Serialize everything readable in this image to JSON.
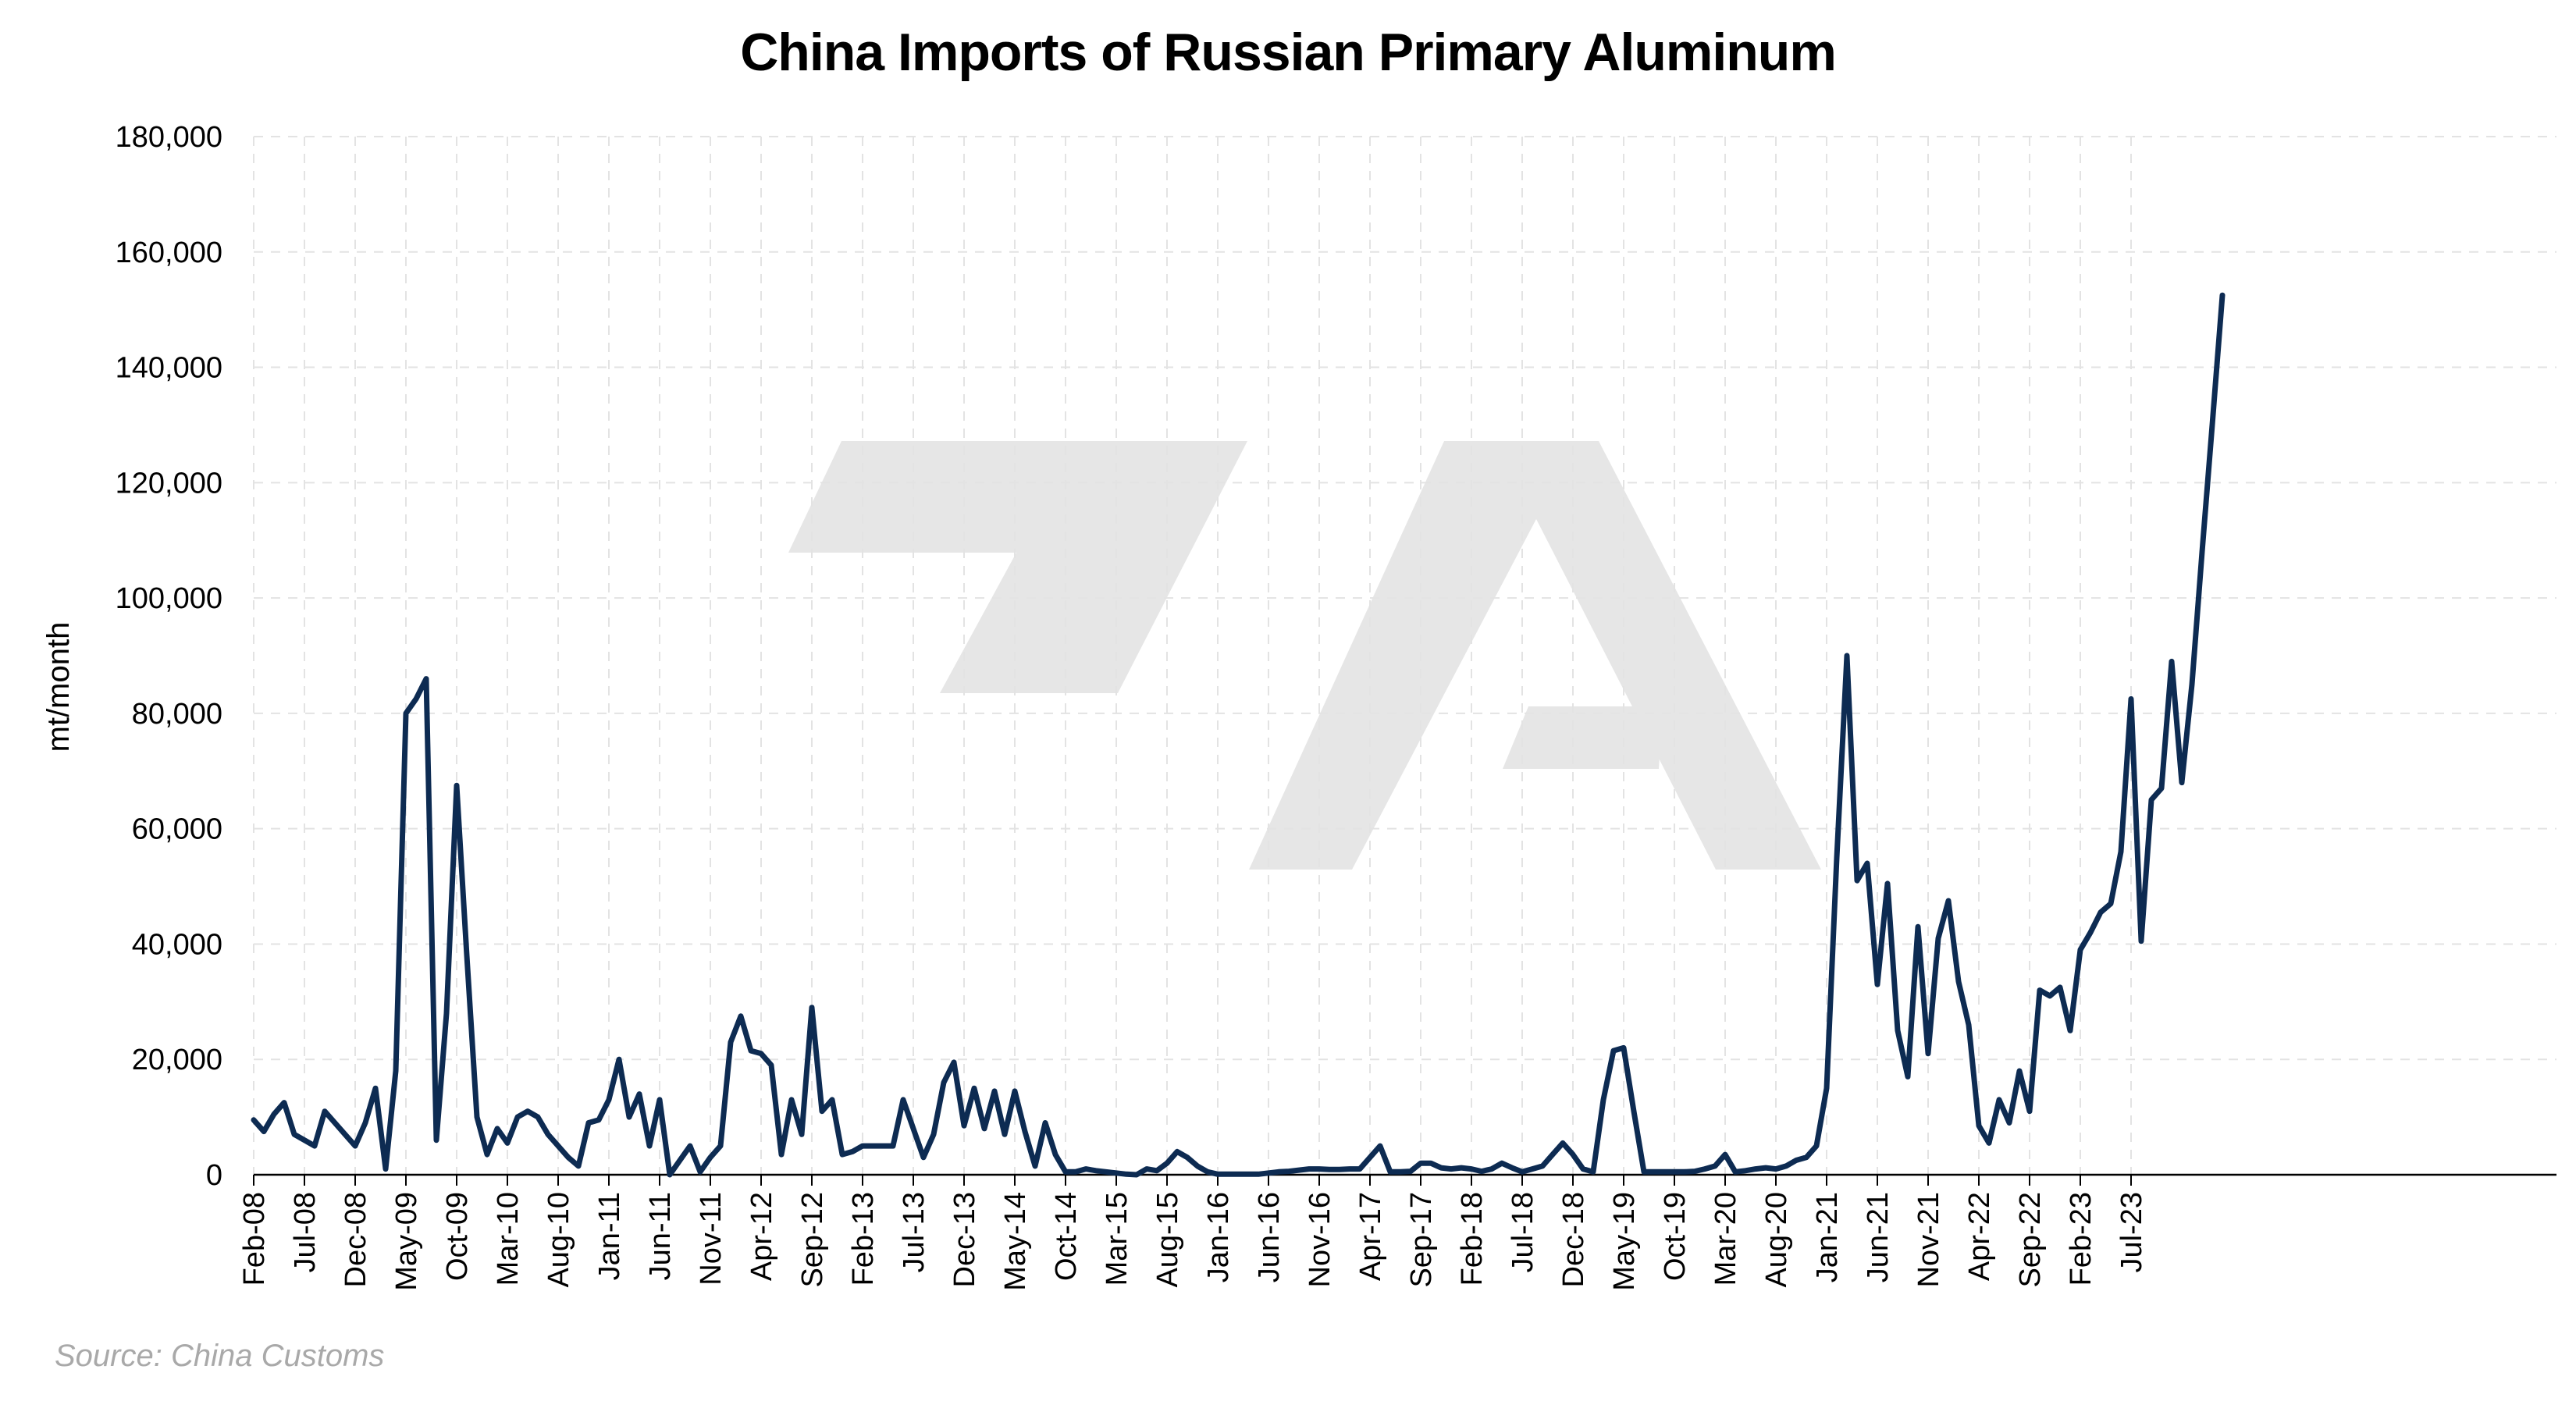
{
  "chart_data": {
    "type": "line",
    "title": "China Imports of Russian Primary Aluminum",
    "ylabel": "mt/month",
    "xlabel": "",
    "source": "Source: China Customs",
    "ylim": [
      0,
      180000
    ],
    "yticks": [
      0,
      20000,
      40000,
      60000,
      80000,
      100000,
      120000,
      140000,
      160000,
      180000
    ],
    "ytick_labels": [
      "0",
      "20,000",
      "40,000",
      "60,000",
      "80,000",
      "100,000",
      "120,000",
      "140,000",
      "160,000",
      "180,000"
    ],
    "x_tick_labels": [
      "Feb-08",
      "Jul-08",
      "Dec-08",
      "May-09",
      "Oct-09",
      "Mar-10",
      "Aug-10",
      "Jan-11",
      "Jun-11",
      "Nov-11",
      "Apr-12",
      "Sep-12",
      "Feb-13",
      "Jul-13",
      "Dec-13",
      "May-14",
      "Oct-14",
      "Mar-15",
      "Aug-15",
      "Jan-16",
      "Jun-16",
      "Nov-16",
      "Apr-17",
      "Sep-17",
      "Feb-18",
      "Jul-18",
      "Dec-18",
      "May-19",
      "Oct-19",
      "Mar-20",
      "Aug-20",
      "Jan-21",
      "Jun-21",
      "Nov-21",
      "Apr-22",
      "Sep-22",
      "Feb-23",
      "Jul-23"
    ],
    "x_start": "Feb-08",
    "x_frequency": "monthly",
    "grid": true,
    "line_color": "#0d2b52",
    "series": [
      {
        "values": [
          9500,
          7500,
          10500,
          12500,
          7000,
          6000,
          5000,
          11000,
          9000,
          7000,
          5000,
          9000,
          15000,
          1000,
          18000,
          80000,
          82500,
          86000,
          6000,
          28000,
          67500,
          38000,
          10000,
          3500,
          8000,
          5500,
          10000,
          11000,
          10000,
          7000,
          5000,
          3000,
          1500,
          9000,
          9500,
          13000,
          20000,
          10000,
          14000,
          5000,
          13000,
          0,
          2500,
          5000,
          500,
          3000,
          5000,
          23000,
          27500,
          21500,
          21000,
          19000,
          3500,
          13000,
          7000,
          29000,
          11000,
          13000,
          3500,
          4000,
          5000,
          5000,
          5000,
          5000,
          13000,
          8000,
          3000,
          7000,
          16000,
          19500,
          8500,
          15000,
          8000,
          14500,
          7000,
          14500,
          7500,
          1500,
          9000,
          3500,
          500,
          500,
          1000,
          700,
          500,
          300,
          100,
          0,
          1000,
          700,
          2000,
          4000,
          3000,
          1500,
          500,
          100,
          100,
          100,
          100,
          100,
          300,
          500,
          600,
          800,
          1000,
          1000,
          900,
          900,
          1000,
          1000,
          3000,
          5000,
          500,
          500,
          600,
          2000,
          2000,
          1200,
          1000,
          1200,
          1000,
          600,
          1000,
          2000,
          1200,
          500,
          1000,
          1500,
          3500,
          5500,
          3500,
          1000,
          500,
          13000,
          21500,
          22000,
          11000,
          500,
          500,
          500,
          500,
          500,
          600,
          1000,
          1500,
          3500,
          500,
          700,
          1000,
          1200,
          1000,
          1500,
          2500,
          3000,
          5000,
          15000,
          55000,
          90000,
          51000,
          54000,
          33000,
          50500,
          25000,
          17000,
          43000,
          21000,
          41000,
          47500,
          33500,
          26000,
          8500,
          5500,
          13000,
          9000,
          18000,
          11000,
          32000,
          31000,
          32500,
          25000,
          39000,
          42000,
          45500,
          47000,
          56000,
          82500,
          40500,
          65000,
          67000,
          89000,
          68000,
          85000,
          108000,
          130000,
          152500
        ]
      }
    ]
  }
}
